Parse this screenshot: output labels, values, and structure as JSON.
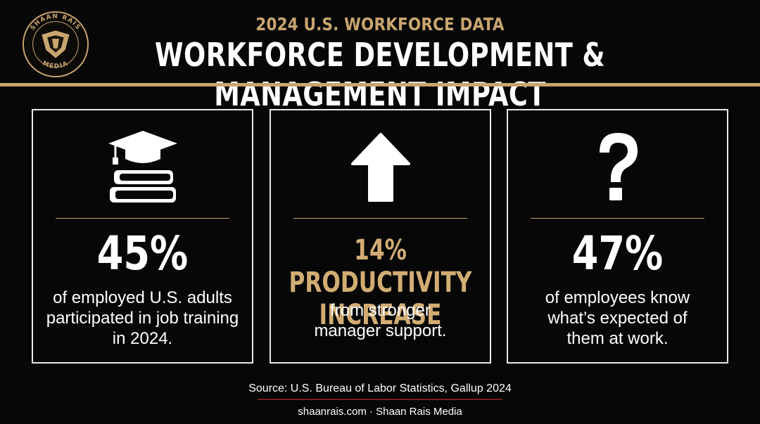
{
  "logo": {
    "text": "SHAAN RAIS MEDIA",
    "accent": "#c9a56f"
  },
  "header": {
    "subtitle": "2024 U.S. WORKFORCE DATA",
    "title": "WORKFORCE DEVELOPMENT & MANAGEMENT IMPACT"
  },
  "panels": [
    {
      "icon": "graduation-cap-books-icon",
      "stat": "45%",
      "description": "of employed U.S. adults participated in job training in 2024."
    },
    {
      "icon": "up-arrow-icon",
      "stat_line1": "14% PRODUCTIVITY",
      "stat_line2": "INCREASE",
      "description": "from stronger manager support."
    },
    {
      "icon": "question-mark-icon",
      "stat": "47%",
      "description": "of employees know what’s expected of them at work."
    }
  ],
  "footer": {
    "source": "Source: U.S. Bureau of Labor Statistics, Gallup 2024",
    "site": "shaanrais.com · Shaan Rais Media"
  },
  "colors": {
    "background": "#070707",
    "gold": "#c9a56f",
    "panel_border": "#e8e8e8",
    "source_rule": "#7a1c23"
  }
}
